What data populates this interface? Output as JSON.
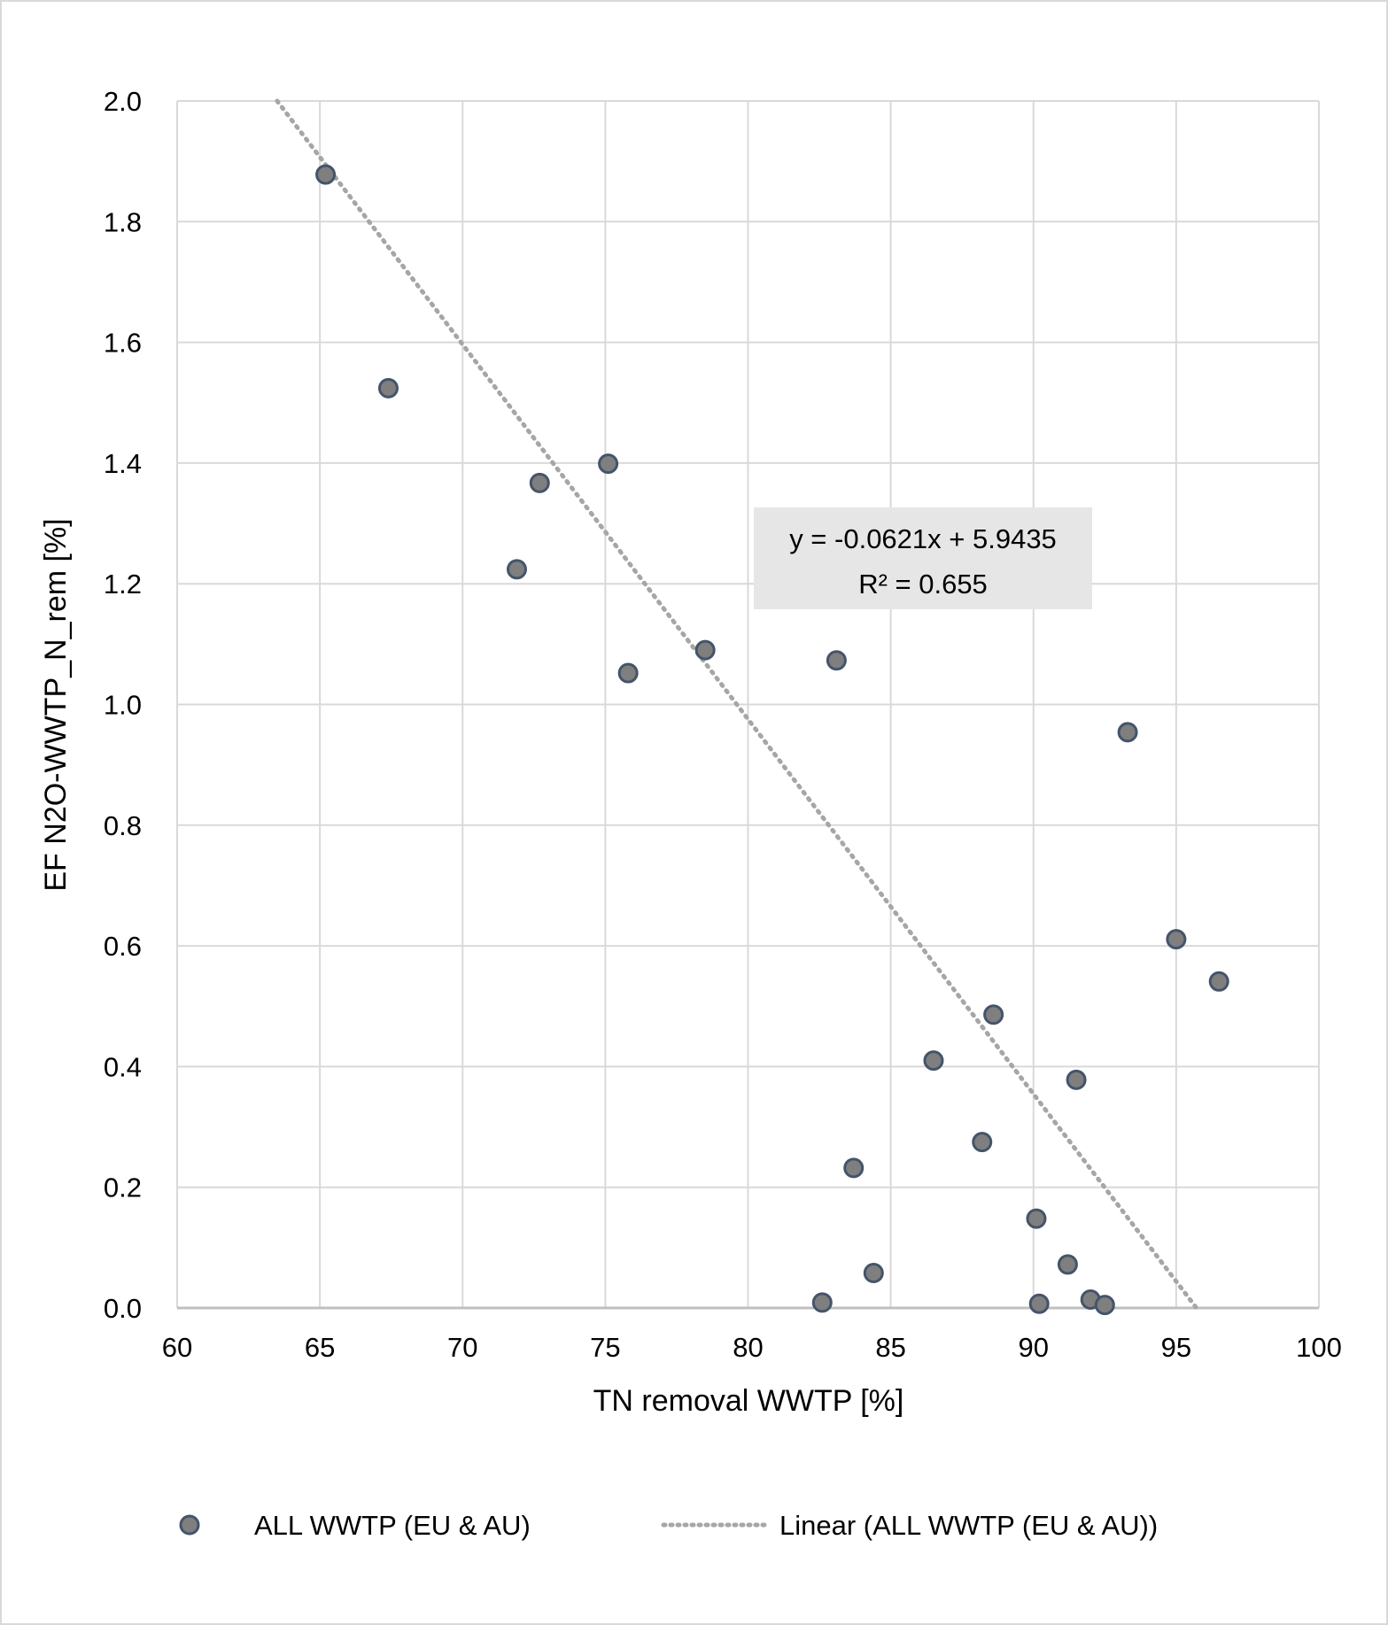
{
  "chart_data": {
    "type": "scatter",
    "xlabel": "TN removal WWTP [%]",
    "ylabel": "EF N2O-WWTP_N_rem [%]",
    "xlim": [
      60,
      100
    ],
    "ylim": [
      0,
      2.0
    ],
    "xticks": [
      "60",
      "65",
      "70",
      "75",
      "80",
      "85",
      "90",
      "95",
      "100"
    ],
    "yticks": [
      "0.0",
      "0.2",
      "0.4",
      "0.6",
      "0.8",
      "1.0",
      "1.2",
      "1.4",
      "1.6",
      "1.8",
      "2.0"
    ],
    "grid": true,
    "legend_position": "bottom",
    "series": [
      {
        "name": "ALL WWTP (EU & AU)",
        "marker_color": "#7f7f7f",
        "marker_edge": "#44546a",
        "points": [
          [
            65.2,
            1.878
          ],
          [
            67.4,
            1.524
          ],
          [
            72.7,
            1.367
          ],
          [
            75.1,
            1.399
          ],
          [
            71.9,
            1.224
          ],
          [
            75.8,
            1.052
          ],
          [
            78.5,
            1.09
          ],
          [
            83.1,
            1.073
          ],
          [
            93.3,
            0.954
          ],
          [
            95.0,
            0.611
          ],
          [
            96.5,
            0.541
          ],
          [
            88.6,
            0.486
          ],
          [
            86.5,
            0.41
          ],
          [
            91.5,
            0.378
          ],
          [
            88.2,
            0.275
          ],
          [
            83.7,
            0.232
          ],
          [
            90.1,
            0.148
          ],
          [
            84.4,
            0.058
          ],
          [
            91.2,
            0.072
          ],
          [
            82.6,
            0.009
          ],
          [
            90.2,
            0.007
          ],
          [
            92.0,
            0.014
          ],
          [
            92.5,
            0.005
          ]
        ]
      }
    ],
    "trendline": {
      "name": "Linear (ALL WWTP (EU & AU))",
      "type": "linear",
      "slope": -0.0621,
      "intercept": 5.9435,
      "color": "#a6a6a6",
      "style": "dotted",
      "equation_label": "y = -0.0621x + 5.9435",
      "r2_label": "R² = 0.655"
    }
  }
}
